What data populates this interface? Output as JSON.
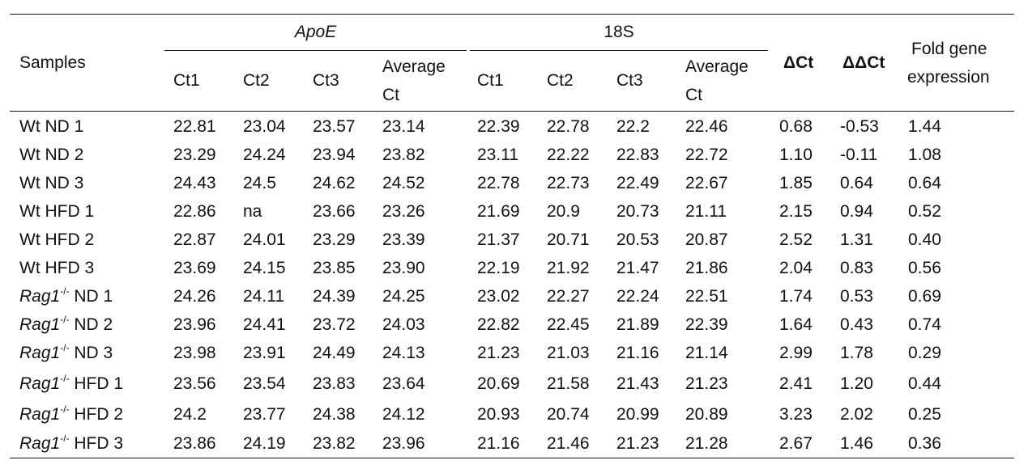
{
  "header": {
    "samples": "Samples",
    "apoe": "ApoE",
    "s18": "18S",
    "delta_ct": "ΔCt",
    "delta_delta_ct": "ΔΔCt",
    "fold_line1": "Fold gene",
    "fold_line2": "expression",
    "ct1": "Ct1",
    "ct2": "Ct2",
    "ct3": "Ct3",
    "average_line1": "Average",
    "average_line2": "Ct"
  },
  "rows": [
    {
      "prefix": "Wt",
      "italic": false,
      "sup": "",
      "label": " ND 1",
      "cells": [
        "22.81",
        "23.04",
        "23.57",
        "23.14",
        "22.39",
        "22.78",
        "22.2",
        "22.46",
        "0.68",
        "-0.53",
        "1.44"
      ]
    },
    {
      "prefix": "Wt",
      "italic": false,
      "sup": "",
      "label": " ND 2",
      "cells": [
        "23.29",
        "24.24",
        "23.94",
        "23.82",
        "23.11",
        "22.22",
        "22.83",
        "22.72",
        "1.10",
        "-0.11",
        "1.08"
      ]
    },
    {
      "prefix": "Wt",
      "italic": false,
      "sup": "",
      "label": " ND 3",
      "cells": [
        "24.43",
        "24.5",
        "24.62",
        "24.52",
        "22.78",
        "22.73",
        "22.49",
        "22.67",
        "1.85",
        "0.64",
        "0.64"
      ]
    },
    {
      "prefix": "Wt",
      "italic": false,
      "sup": "",
      "label": " HFD 1",
      "cells": [
        "22.86",
        "na",
        "23.66",
        "23.26",
        "21.69",
        "20.9",
        "20.73",
        "21.11",
        "2.15",
        "0.94",
        "0.52"
      ]
    },
    {
      "prefix": "Wt",
      "italic": false,
      "sup": "",
      "label": " HFD 2",
      "cells": [
        "22.87",
        "24.01",
        "23.29",
        "23.39",
        "21.37",
        "20.71",
        "20.53",
        "20.87",
        "2.52",
        "1.31",
        "0.40"
      ]
    },
    {
      "prefix": "Wt",
      "italic": false,
      "sup": "",
      "label": " HFD 3",
      "cells": [
        "23.69",
        "24.15",
        "23.85",
        "23.90",
        "22.19",
        "21.92",
        "21.47",
        "21.86",
        "2.04",
        "0.83",
        "0.56"
      ]
    },
    {
      "prefix": "Rag1",
      "italic": true,
      "sup": "-/-",
      "label": " ND 1",
      "cells": [
        "24.26",
        "24.11",
        "24.39",
        "24.25",
        "23.02",
        "22.27",
        "22.24",
        "22.51",
        "1.74",
        "0.53",
        "0.69"
      ]
    },
    {
      "prefix": "Rag1",
      "italic": true,
      "sup": "-/-",
      "label": " ND 2",
      "cells": [
        "23.96",
        "24.41",
        "23.72",
        "24.03",
        "22.82",
        "22.45",
        "21.89",
        "22.39",
        "1.64",
        "0.43",
        "0.74"
      ]
    },
    {
      "prefix": "Rag1",
      "italic": true,
      "sup": "-/-",
      "label": " ND 3",
      "cells": [
        "23.98",
        "23.91",
        "24.49",
        "24.13",
        "21.23",
        "21.03",
        "21.16",
        "21.14",
        "2.99",
        "1.78",
        "0.29"
      ]
    },
    {
      "prefix": "Rag1",
      "italic": true,
      "sup": "-/-",
      "label": " HFD 1",
      "cells": [
        "23.56",
        "23.54",
        "23.83",
        "23.64",
        "20.69",
        "21.58",
        "21.43",
        "21.23",
        "2.41",
        "1.20",
        "0.44"
      ]
    },
    {
      "prefix": "Rag1",
      "italic": true,
      "sup": "-/-",
      "label": " HFD 2",
      "cells": [
        "24.2",
        "23.77",
        "24.38",
        "24.12",
        "20.93",
        "20.74",
        "20.99",
        "20.89",
        "3.23",
        "2.02",
        "0.25"
      ]
    },
    {
      "prefix": "Rag1",
      "italic": true,
      "sup": "-/-",
      "label": " HFD 3",
      "cells": [
        "23.86",
        "24.19",
        "23.82",
        "23.96",
        "21.16",
        "21.46",
        "21.23",
        "21.28",
        "2.67",
        "1.46",
        "0.36"
      ]
    }
  ]
}
